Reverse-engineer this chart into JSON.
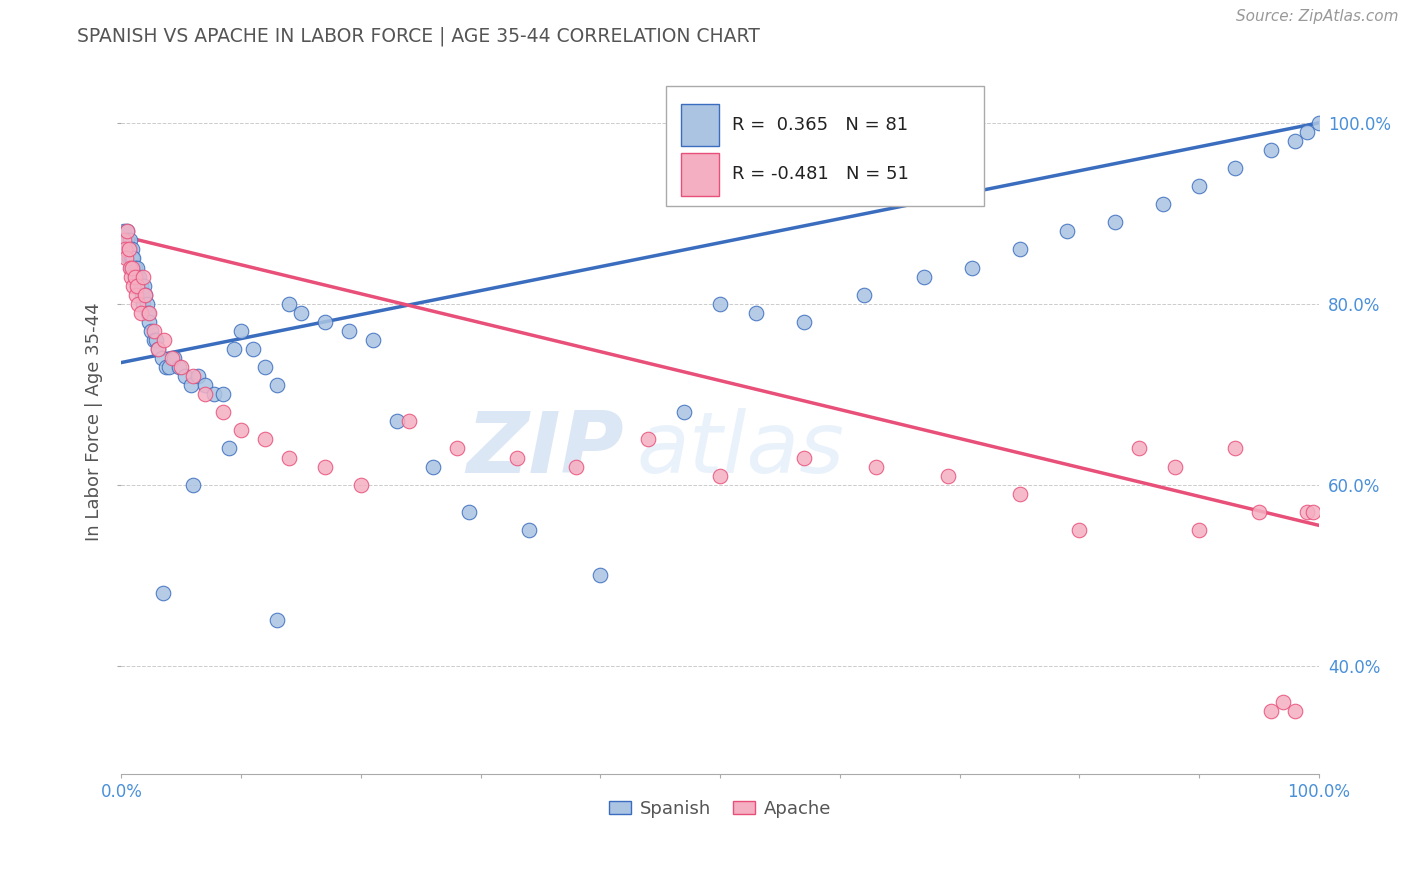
{
  "title": "SPANISH VS APACHE IN LABOR FORCE | AGE 35-44 CORRELATION CHART",
  "source_text": "Source: ZipAtlas.com",
  "ylabel": "In Labor Force | Age 35-44",
  "xlim": [
    0.0,
    1.0
  ],
  "ylim": [
    0.28,
    1.06
  ],
  "xtick_positions": [
    0.0,
    0.1,
    0.2,
    0.3,
    0.4,
    0.5,
    0.6,
    0.7,
    0.8,
    0.9,
    1.0
  ],
  "xtick_labels_show": {
    "0.0": "0.0%",
    "1.0": "100.0%"
  },
  "ytick_positions": [
    0.4,
    0.6,
    0.8,
    1.0
  ],
  "ytick_labels": [
    "40.0%",
    "60.0%",
    "80.0%",
    "100.0%"
  ],
  "spanish_R": 0.365,
  "spanish_N": 81,
  "apache_R": -0.481,
  "apache_N": 51,
  "spanish_color": "#aac4e2",
  "apache_color": "#f5afc2",
  "spanish_line_color": "#3b6dbf",
  "apache_line_color": "#e8507a",
  "watermark_text": "ZIP",
  "watermark_text2": "atlas",
  "background_color": "#ffffff",
  "grid_color": "#cccccc",
  "title_color": "#555555",
  "axis_label_color": "#555555",
  "tick_color": "#4a90d9",
  "spanish_line_y0": 0.735,
  "spanish_line_y1": 1.0,
  "apache_line_y0": 0.875,
  "apache_line_y1": 0.555,
  "spanish_x": [
    0.002,
    0.003,
    0.004,
    0.005,
    0.005,
    0.006,
    0.006,
    0.007,
    0.007,
    0.008,
    0.008,
    0.009,
    0.009,
    0.01,
    0.01,
    0.011,
    0.011,
    0.012,
    0.013,
    0.013,
    0.014,
    0.015,
    0.016,
    0.017,
    0.018,
    0.019,
    0.02,
    0.021,
    0.022,
    0.023,
    0.025,
    0.027,
    0.029,
    0.031,
    0.034,
    0.037,
    0.04,
    0.044,
    0.048,
    0.053,
    0.058,
    0.064,
    0.07,
    0.077,
    0.085,
    0.094,
    0.1,
    0.11,
    0.12,
    0.13,
    0.14,
    0.15,
    0.17,
    0.19,
    0.21,
    0.23,
    0.26,
    0.29,
    0.34,
    0.4,
    0.47,
    0.5,
    0.53,
    0.57,
    0.62,
    0.67,
    0.71,
    0.75,
    0.79,
    0.83,
    0.87,
    0.9,
    0.93,
    0.96,
    0.98,
    0.99,
    1.0,
    0.035,
    0.06,
    0.09,
    0.13
  ],
  "spanish_y": [
    0.88,
    0.87,
    0.86,
    0.88,
    0.87,
    0.85,
    0.86,
    0.87,
    0.86,
    0.85,
    0.84,
    0.86,
    0.85,
    0.84,
    0.85,
    0.83,
    0.84,
    0.83,
    0.84,
    0.83,
    0.82,
    0.83,
    0.82,
    0.81,
    0.8,
    0.82,
    0.81,
    0.8,
    0.79,
    0.78,
    0.77,
    0.76,
    0.76,
    0.75,
    0.74,
    0.73,
    0.73,
    0.74,
    0.73,
    0.72,
    0.71,
    0.72,
    0.71,
    0.7,
    0.7,
    0.75,
    0.77,
    0.75,
    0.73,
    0.71,
    0.8,
    0.79,
    0.78,
    0.77,
    0.76,
    0.67,
    0.62,
    0.57,
    0.55,
    0.5,
    0.68,
    0.8,
    0.79,
    0.78,
    0.81,
    0.83,
    0.84,
    0.86,
    0.88,
    0.89,
    0.91,
    0.93,
    0.95,
    0.97,
    0.98,
    0.99,
    1.0,
    0.48,
    0.6,
    0.64,
    0.45
  ],
  "apache_x": [
    0.002,
    0.003,
    0.004,
    0.005,
    0.006,
    0.007,
    0.008,
    0.009,
    0.01,
    0.011,
    0.012,
    0.013,
    0.014,
    0.016,
    0.018,
    0.02,
    0.023,
    0.027,
    0.031,
    0.036,
    0.042,
    0.05,
    0.06,
    0.07,
    0.085,
    0.1,
    0.12,
    0.14,
    0.17,
    0.2,
    0.24,
    0.28,
    0.33,
    0.38,
    0.44,
    0.5,
    0.57,
    0.63,
    0.69,
    0.75,
    0.8,
    0.85,
    0.88,
    0.9,
    0.93,
    0.95,
    0.96,
    0.97,
    0.98,
    0.99,
    0.995
  ],
  "apache_y": [
    0.87,
    0.86,
    0.85,
    0.88,
    0.86,
    0.84,
    0.83,
    0.84,
    0.82,
    0.83,
    0.81,
    0.82,
    0.8,
    0.79,
    0.83,
    0.81,
    0.79,
    0.77,
    0.75,
    0.76,
    0.74,
    0.73,
    0.72,
    0.7,
    0.68,
    0.66,
    0.65,
    0.63,
    0.62,
    0.6,
    0.67,
    0.64,
    0.63,
    0.62,
    0.65,
    0.61,
    0.63,
    0.62,
    0.61,
    0.59,
    0.55,
    0.64,
    0.62,
    0.55,
    0.64,
    0.57,
    0.35,
    0.36,
    0.35,
    0.57,
    0.57
  ]
}
